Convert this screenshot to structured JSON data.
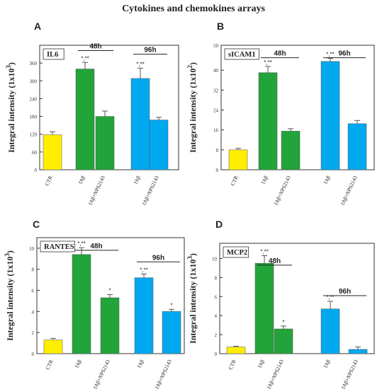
{
  "figure_title": "Cytokines and chemokines arrays",
  "chart_data": [
    {
      "panel": "A",
      "type": "bar",
      "title": "IL6",
      "ylabel": "Integral intensity (1x10",
      "ylabel_exp": "3",
      "ylim": [
        0,
        420
      ],
      "yticks": [
        "0",
        "60",
        "120",
        "180",
        "240",
        "300",
        "360"
      ],
      "categories": [
        "CTR",
        "fAβ",
        "fAβ+NPS2143",
        "fAβ",
        "fAβ+NPS2143"
      ],
      "values": [
        118,
        340,
        180,
        308,
        168
      ],
      "errors": [
        10,
        22,
        18,
        35,
        9
      ],
      "colors": [
        "#ffee00",
        "#22a43a",
        "#22a43a",
        "#00a8f0",
        "#00a8f0"
      ],
      "bar_labels": [
        "",
        "*,**",
        "",
        "*,**",
        ""
      ],
      "brackets": [
        {
          "label": "48h",
          "from": 1,
          "to": 2,
          "y": 402
        },
        {
          "label": "96h",
          "from": 3,
          "to": 4,
          "y": 390
        }
      ]
    },
    {
      "panel": "B",
      "type": "bar",
      "title": "sICAM1",
      "ylabel": "Integral intensity (1x10",
      "ylabel_exp": "2",
      "ylim": [
        0,
        50
      ],
      "yticks": [
        "0",
        "8",
        "16",
        "24",
        "32",
        "40",
        "50"
      ],
      "categories": [
        "CTR",
        "fAβ",
        "fAβ+NPS2143",
        "fAβ",
        "fAβ+NPS2143"
      ],
      "values": [
        8,
        39,
        15.5,
        43.5,
        18.5
      ],
      "errors": [
        0.6,
        2.5,
        1,
        1.2,
        1.3
      ],
      "colors": [
        "#ffee00",
        "#22a43a",
        "#22a43a",
        "#00a8f0",
        "#00a8f0"
      ],
      "bar_labels": [
        "",
        "*,**",
        "",
        "*,**",
        ""
      ],
      "brackets": [
        {
          "label": "48h",
          "from": 1,
          "to": 2,
          "y": 45
        },
        {
          "label": "96h",
          "from": 3,
          "to": 4,
          "y": 45
        }
      ]
    },
    {
      "panel": "C",
      "type": "bar",
      "title": "RANTES",
      "ylabel": "Integral intensity (1x10",
      "ylabel_exp": "3",
      "ylim": [
        0,
        11
      ],
      "yticks": [
        "0",
        "2",
        "4",
        "6",
        "8",
        "10"
      ],
      "categories": [
        "CTR",
        "fAβ",
        "fAβ+NPS2143",
        "fAβ",
        "fAβ+NPS2143"
      ],
      "values": [
        1.3,
        9.4,
        5.3,
        7.2,
        4.0
      ],
      "errors": [
        0.15,
        0.65,
        0.3,
        0.35,
        0.2
      ],
      "colors": [
        "#ffee00",
        "#22a43a",
        "#22a43a",
        "#00a8f0",
        "#00a8f0"
      ],
      "bar_labels": [
        "",
        "*,**",
        "*",
        "*,**",
        "*"
      ],
      "brackets": [
        {
          "label": "48h",
          "from": 1,
          "to": 2,
          "y": 9.8
        },
        {
          "label": "96h",
          "from": 3,
          "to": 4,
          "y": 8.7
        }
      ]
    },
    {
      "panel": "D",
      "type": "bar",
      "title": "MCP2",
      "ylabel": "Integral intensity (1x10",
      "ylabel_exp": "3",
      "ylim": [
        0,
        11.6
      ],
      "yticks": [
        "0",
        "2",
        "4",
        "6",
        "8",
        "10"
      ],
      "categories": [
        "CTR",
        "fAβ",
        "fAβ+NPS2143",
        "fAβ",
        "fAβ+NPS2143"
      ],
      "values": [
        0.7,
        9.5,
        2.6,
        4.7,
        0.45
      ],
      "errors": [
        0.08,
        0.8,
        0.3,
        0.8,
        0.25
      ],
      "colors": [
        "#ffee00",
        "#22a43a",
        "#22a43a",
        "#00a8f0",
        "#00a8f0"
      ],
      "bar_labels": [
        "",
        "*,**",
        "*",
        "*,**",
        ""
      ],
      "brackets": [
        {
          "label": "48h",
          "from": 1,
          "to": 2,
          "y": 9.3
        },
        {
          "label": "96h",
          "from": 3,
          "to": 4,
          "y": 6.1
        }
      ]
    }
  ]
}
